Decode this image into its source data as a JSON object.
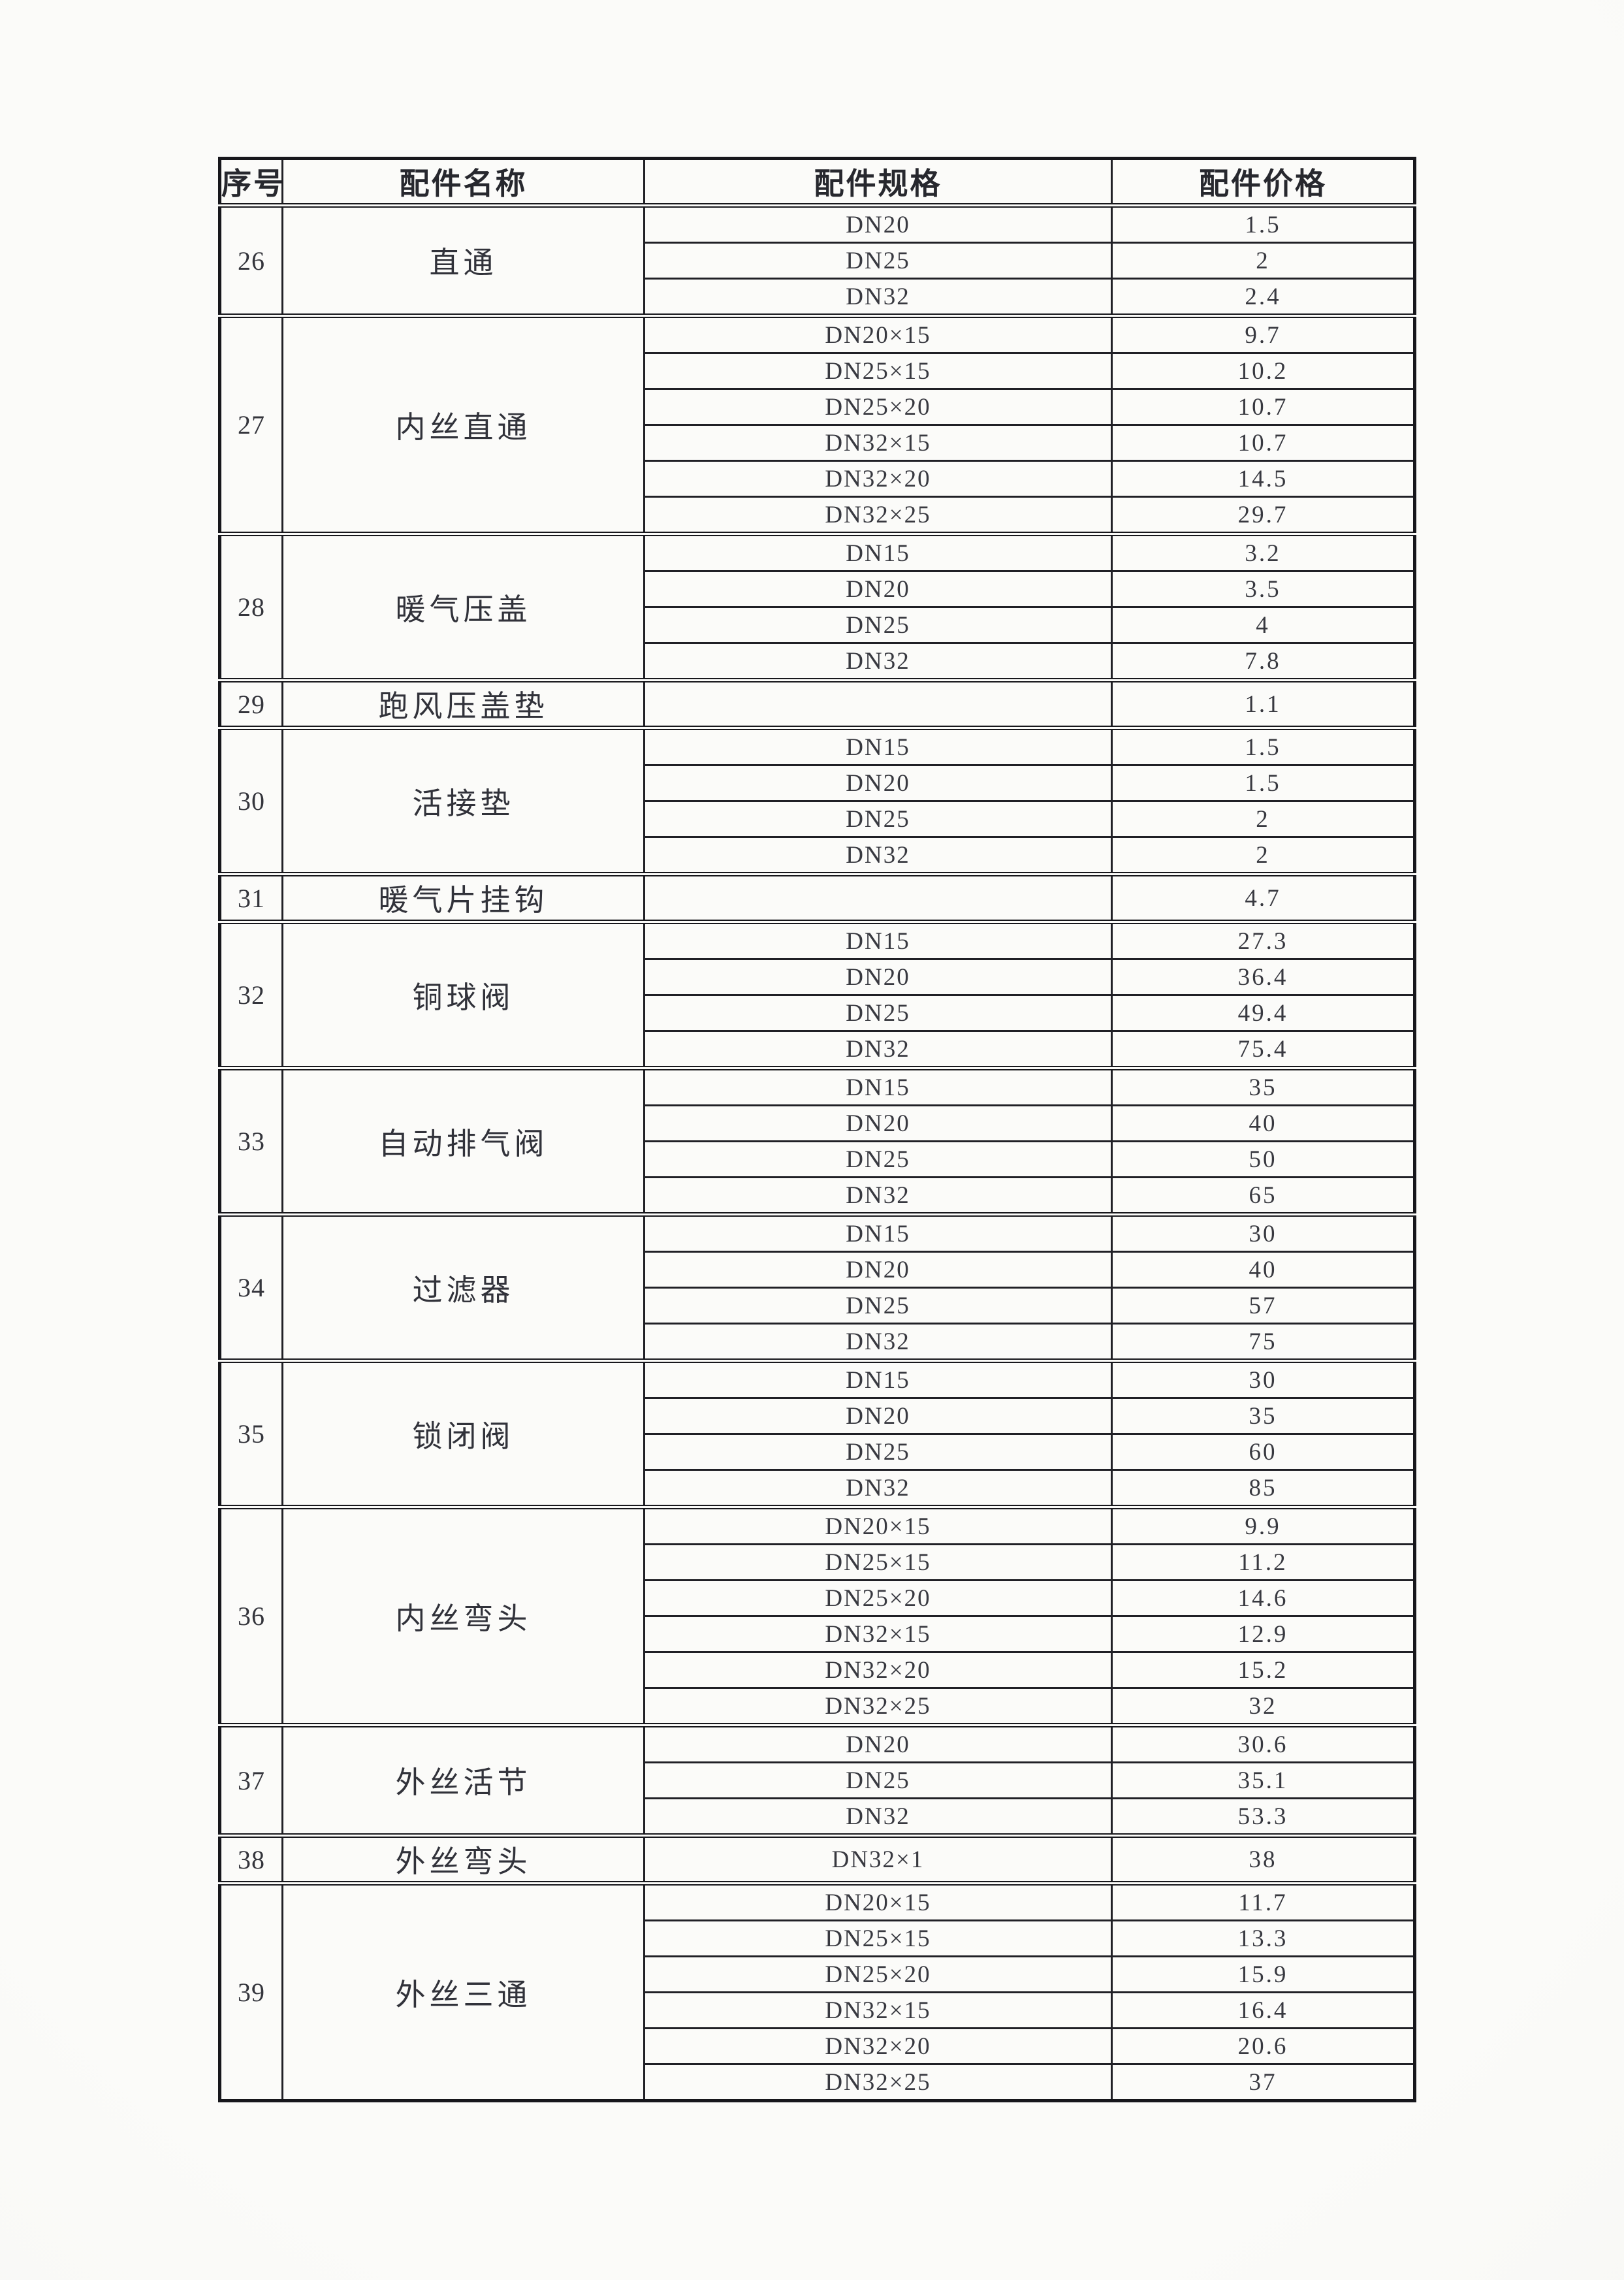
{
  "page": {
    "background_color": "#f8f8f5",
    "ink_color": "#2e2f36",
    "border_color": "#17171c"
  },
  "table": {
    "headers": [
      "序号",
      "配件名称",
      "配件规格",
      "配件价格"
    ],
    "groups": [
      {
        "no": "26",
        "name": "直通",
        "rows": [
          [
            "DN20",
            "1.5"
          ],
          [
            "DN25",
            "2"
          ],
          [
            "DN32",
            "2.4"
          ]
        ]
      },
      {
        "no": "27",
        "name": "内丝直通",
        "rows": [
          [
            "DN20×15",
            "9.7"
          ],
          [
            "DN25×15",
            "10.2"
          ],
          [
            "DN25×20",
            "10.7"
          ],
          [
            "DN32×15",
            "10.7"
          ],
          [
            "DN32×20",
            "14.5"
          ],
          [
            "DN32×25",
            "29.7"
          ]
        ]
      },
      {
        "no": "28",
        "name": "暖气压盖",
        "rows": [
          [
            "DN15",
            "3.2"
          ],
          [
            "DN20",
            "3.5"
          ],
          [
            "DN25",
            "4"
          ],
          [
            "DN32",
            "7.8"
          ]
        ]
      },
      {
        "no": "29",
        "name": "跑风压盖垫",
        "rows": [
          [
            "",
            "1.1"
          ]
        ]
      },
      {
        "no": "30",
        "name": "活接垫",
        "rows": [
          [
            "DN15",
            "1.5"
          ],
          [
            "DN20",
            "1.5"
          ],
          [
            "DN25",
            "2"
          ],
          [
            "DN32",
            "2"
          ]
        ]
      },
      {
        "no": "31",
        "name": "暖气片挂钩",
        "rows": [
          [
            "",
            "4.7"
          ]
        ]
      },
      {
        "no": "32",
        "name": "铜球阀",
        "rows": [
          [
            "DN15",
            "27.3"
          ],
          [
            "DN20",
            "36.4"
          ],
          [
            "DN25",
            "49.4"
          ],
          [
            "DN32",
            "75.4"
          ]
        ]
      },
      {
        "no": "33",
        "name": "自动排气阀",
        "rows": [
          [
            "DN15",
            "35"
          ],
          [
            "DN20",
            "40"
          ],
          [
            "DN25",
            "50"
          ],
          [
            "DN32",
            "65"
          ]
        ]
      },
      {
        "no": "34",
        "name": "过滤器",
        "rows": [
          [
            "DN15",
            "30"
          ],
          [
            "DN20",
            "40"
          ],
          [
            "DN25",
            "57"
          ],
          [
            "DN32",
            "75"
          ]
        ]
      },
      {
        "no": "35",
        "name": "锁闭阀",
        "rows": [
          [
            "DN15",
            "30"
          ],
          [
            "DN20",
            "35"
          ],
          [
            "DN25",
            "60"
          ],
          [
            "DN32",
            "85"
          ]
        ]
      },
      {
        "no": "36",
        "name": "内丝弯头",
        "rows": [
          [
            "DN20×15",
            "9.9"
          ],
          [
            "DN25×15",
            "11.2"
          ],
          [
            "DN25×20",
            "14.6"
          ],
          [
            "DN32×15",
            "12.9"
          ],
          [
            "DN32×20",
            "15.2"
          ],
          [
            "DN32×25",
            "32"
          ]
        ]
      },
      {
        "no": "37",
        "name": "外丝活节",
        "rows": [
          [
            "DN20",
            "30.6"
          ],
          [
            "DN25",
            "35.1"
          ],
          [
            "DN32",
            "53.3"
          ]
        ]
      },
      {
        "no": "38",
        "name": "外丝弯头",
        "rows": [
          [
            "DN32×1",
            "38"
          ]
        ]
      },
      {
        "no": "39",
        "name": "外丝三通",
        "rows": [
          [
            "DN20×15",
            "11.7"
          ],
          [
            "DN25×15",
            "13.3"
          ],
          [
            "DN25×20",
            "15.9"
          ],
          [
            "DN32×15",
            "16.4"
          ],
          [
            "DN32×20",
            "20.6"
          ],
          [
            "DN32×25",
            "37"
          ]
        ]
      }
    ]
  }
}
